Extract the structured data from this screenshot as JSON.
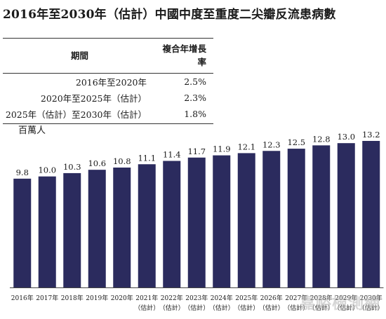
{
  "title": "2016年至2030年（估計）中國中度至重度二尖瓣反流患病數",
  "cagr_table": {
    "headers": [
      "期間",
      "複合年增長率"
    ],
    "rows": [
      {
        "period": "2016年至2020年",
        "rate": "2.5%"
      },
      {
        "period": "2020年至2025年（估計）",
        "rate": "2.3%"
      },
      {
        "period": "2025年（估計）至2030年（估計）",
        "rate": "1.8%"
      }
    ]
  },
  "watermark": "嘉峪檢測網",
  "colors": {
    "bar": "#2b2b5e",
    "axis": "#444444"
  },
  "chart_data": {
    "type": "bar",
    "ylabel": "百萬人",
    "categories": [
      [
        "2016年",
        ""
      ],
      [
        "2017年",
        ""
      ],
      [
        "2018年",
        ""
      ],
      [
        "2019年",
        ""
      ],
      [
        "2020年",
        ""
      ],
      [
        "2021年",
        "（估計）"
      ],
      [
        "2022年",
        "（估計）"
      ],
      [
        "2023年",
        "（估計）"
      ],
      [
        "2024年",
        "（估計）"
      ],
      [
        "2025年",
        "（估計）"
      ],
      [
        "2026年",
        "（估計）"
      ],
      [
        "2027年",
        "（估計）"
      ],
      [
        "2028年",
        "（估計）"
      ],
      [
        "2029年",
        "（估計）"
      ],
      [
        "2030年",
        "（估計）"
      ]
    ],
    "values": [
      9.8,
      10.0,
      10.3,
      10.6,
      10.8,
      11.1,
      11.4,
      11.7,
      11.9,
      12.1,
      12.3,
      12.5,
      12.8,
      13.0,
      13.2
    ],
    "labels": [
      "9.8",
      "10.0",
      "10.3",
      "10.6",
      "10.8",
      "11.1",
      "11.4",
      "11.7",
      "11.9",
      "12.1",
      "12.3",
      "12.5",
      "12.8",
      "13.0",
      "13.2"
    ],
    "ylim": [
      0,
      13.2
    ],
    "grid": false,
    "legend": "none"
  }
}
